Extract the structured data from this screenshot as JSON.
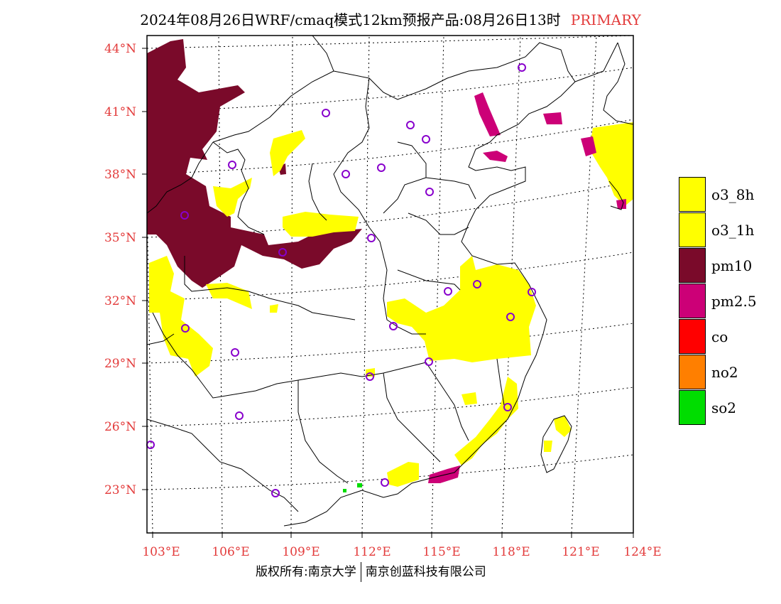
{
  "title": "2024年08月26日WRF/cmaq模式12km预报产品:08月26日13时",
  "mode_tag": "PRIMARY",
  "colors": {
    "o3_8h": "#ffff00",
    "o3_1h": "#ffff00",
    "pm10": "#7a0a2a",
    "pm2_5": "#cc0077",
    "co": "#ff0000",
    "no2": "#ff7f00",
    "so2": "#00dd00",
    "axis_label": "#e33b3b",
    "city_marker": "#8800cc"
  },
  "lat_labels": [
    "44°N",
    "41°N",
    "38°N",
    "35°N",
    "32°N",
    "29°N",
    "26°N",
    "23°N"
  ],
  "lon_labels": [
    "103°E",
    "106°E",
    "109°E",
    "112°E",
    "115°E",
    "118°E",
    "121°E",
    "124°E"
  ],
  "legend": [
    {
      "key": "o3_8h",
      "label": "o3_8h"
    },
    {
      "key": "o3_1h",
      "label": "o3_1h"
    },
    {
      "key": "pm10",
      "label": "pm10"
    },
    {
      "key": "pm2_5",
      "label": "pm2.5"
    },
    {
      "key": "co",
      "label": "co"
    },
    {
      "key": "no2",
      "label": "no2"
    },
    {
      "key": "so2",
      "label": "so2"
    }
  ],
  "footer_left": "版权所有:南京大学",
  "footer_right": "南京创蓝科技有限公司"
}
